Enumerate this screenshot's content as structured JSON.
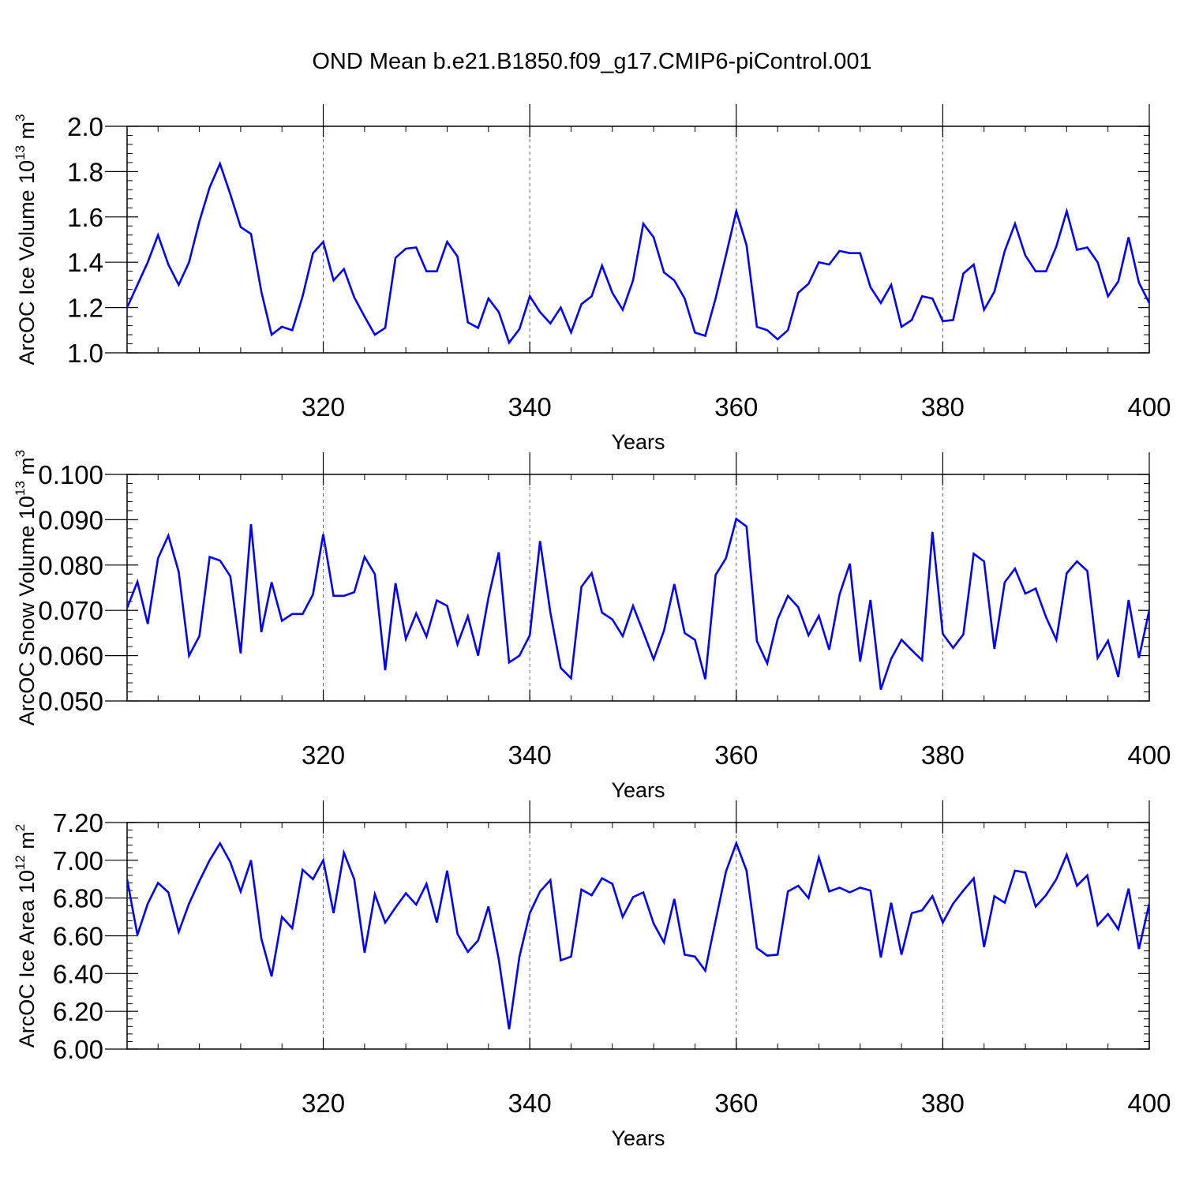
{
  "title": "OND Mean b.e21.B1850.f09_g17.CMIP6-piControl.001",
  "colors": {
    "series": "#0000ff",
    "axis": "#000000",
    "grid": "#666666"
  },
  "chart_data": [
    {
      "type": "line",
      "title": "",
      "xlabel": "Years",
      "ylabel": {
        "base": "ArcOC Ice Volume 10",
        "exp": "13",
        "unit": " m",
        "unit_exp": "3"
      },
      "xlim": [
        301,
        400
      ],
      "ylim": [
        1.0,
        2.0
      ],
      "xticks": [
        320,
        340,
        360,
        380,
        400
      ],
      "xtick_labels": [
        "320",
        "340",
        "360",
        "380",
        "400"
      ],
      "yticks": [
        1.0,
        1.2,
        1.4,
        1.6,
        1.8,
        2.0
      ],
      "ytick_labels": [
        "1.0",
        "1.2",
        "1.4",
        "1.6",
        "1.8",
        "2.0"
      ],
      "grid_x": [
        320,
        340,
        360,
        380
      ],
      "x_start": 301,
      "series": [
        {
          "name": "Ice Volume",
          "values": [
            1.2,
            1.3,
            1.4,
            1.52,
            1.39,
            1.3,
            1.4,
            1.58,
            1.73,
            1.835,
            1.7,
            1.555,
            1.525,
            1.27,
            1.08,
            1.115,
            1.1,
            1.25,
            1.44,
            1.49,
            1.32,
            1.37,
            1.245,
            1.16,
            1.08,
            1.11,
            1.42,
            1.46,
            1.465,
            1.36,
            1.36,
            1.49,
            1.425,
            1.135,
            1.11,
            1.24,
            1.18,
            1.045,
            1.105,
            1.25,
            1.18,
            1.13,
            1.2,
            1.09,
            1.215,
            1.25,
            1.385,
            1.265,
            1.19,
            1.32,
            1.57,
            1.51,
            1.355,
            1.32,
            1.24,
            1.09,
            1.075,
            1.24,
            1.43,
            1.625,
            1.475,
            1.115,
            1.1,
            1.06,
            1.1,
            1.265,
            1.305,
            1.4,
            1.39,
            1.45,
            1.44,
            1.44,
            1.29,
            1.22,
            1.3,
            1.115,
            1.145,
            1.25,
            1.24,
            1.14,
            1.145,
            1.35,
            1.39,
            1.19,
            1.27,
            1.45,
            1.57,
            1.43,
            1.36,
            1.36,
            1.47,
            1.625,
            1.455,
            1.465,
            1.4,
            1.25,
            1.315,
            1.51,
            1.31,
            1.22
          ]
        }
      ]
    },
    {
      "type": "line",
      "title": "",
      "xlabel": "Years",
      "ylabel": {
        "base": "ArcOC Snow Volume 10",
        "exp": "13",
        "unit": " m",
        "unit_exp": "3"
      },
      "xlim": [
        301,
        400
      ],
      "ylim": [
        0.05,
        0.1
      ],
      "xticks": [
        320,
        340,
        360,
        380,
        400
      ],
      "xtick_labels": [
        "320",
        "340",
        "360",
        "380",
        "400"
      ],
      "yticks": [
        0.05,
        0.06,
        0.07,
        0.08,
        0.09,
        0.1
      ],
      "ytick_labels": [
        "0.050",
        "0.060",
        "0.070",
        "0.080",
        "0.090",
        "0.100"
      ],
      "grid_x": [
        320,
        340,
        360,
        380
      ],
      "x_start": 301,
      "series": [
        {
          "name": "Snow Volume",
          "values": [
            0.0705,
            0.0763,
            0.067,
            0.0815,
            0.0865,
            0.0785,
            0.06,
            0.0643,
            0.0818,
            0.081,
            0.0775,
            0.0605,
            0.089,
            0.0652,
            0.0762,
            0.0677,
            0.0692,
            0.0692,
            0.0735,
            0.0868,
            0.0732,
            0.0732,
            0.074,
            0.0818,
            0.078,
            0.0568,
            0.076,
            0.0637,
            0.0693,
            0.0642,
            0.0722,
            0.071,
            0.0625,
            0.0687,
            0.06,
            0.0728,
            0.0828,
            0.0585,
            0.06,
            0.0645,
            0.0853,
            0.0695,
            0.0573,
            0.055,
            0.0752,
            0.0782,
            0.0695,
            0.068,
            0.0643,
            0.071,
            0.0652,
            0.0592,
            0.0655,
            0.0758,
            0.065,
            0.0635,
            0.0548,
            0.0778,
            0.0815,
            0.0902,
            0.0885,
            0.0632,
            0.0583,
            0.068,
            0.0732,
            0.0707,
            0.0645,
            0.0688,
            0.0613,
            0.0735,
            0.0803,
            0.0587,
            0.0723,
            0.0525,
            0.0593,
            0.0635,
            0.0612,
            0.059,
            0.0873,
            0.0648,
            0.0617,
            0.0647,
            0.0825,
            0.0808,
            0.0615,
            0.0762,
            0.0792,
            0.0737,
            0.0748,
            0.0685,
            0.0635,
            0.0782,
            0.0808,
            0.0787,
            0.0595,
            0.0633,
            0.0553,
            0.0723,
            0.0595,
            0.07
          ]
        }
      ]
    },
    {
      "type": "line",
      "title": "",
      "xlabel": "Years",
      "ylabel": {
        "base": "ArcOC Ice Area 10",
        "exp": "12",
        "unit": " m",
        "unit_exp": "2"
      },
      "xlim": [
        301,
        400
      ],
      "ylim": [
        6.0,
        7.2
      ],
      "xticks": [
        320,
        340,
        360,
        380,
        400
      ],
      "xtick_labels": [
        "320",
        "340",
        "360",
        "380",
        "400"
      ],
      "yticks": [
        6.0,
        6.2,
        6.4,
        6.6,
        6.8,
        7.0,
        7.2
      ],
      "ytick_labels": [
        "6.00",
        "6.20",
        "6.40",
        "6.60",
        "6.80",
        "7.00",
        "7.20"
      ],
      "grid_x": [
        320,
        340,
        360,
        380
      ],
      "x_start": 301,
      "series": [
        {
          "name": "Ice Area",
          "values": [
            6.9,
            6.605,
            6.77,
            6.88,
            6.83,
            6.62,
            6.77,
            6.89,
            7.0,
            7.09,
            6.99,
            6.835,
            7.0,
            6.585,
            6.385,
            6.7,
            6.64,
            6.95,
            6.9,
            7.0,
            6.72,
            7.04,
            6.9,
            6.51,
            6.82,
            6.67,
            6.75,
            6.825,
            6.765,
            6.875,
            6.67,
            6.945,
            6.61,
            6.515,
            6.575,
            6.755,
            6.475,
            6.105,
            6.49,
            6.72,
            6.835,
            6.895,
            6.47,
            6.49,
            6.845,
            6.815,
            6.905,
            6.875,
            6.7,
            6.805,
            6.83,
            6.665,
            6.565,
            6.795,
            6.5,
            6.49,
            6.415,
            6.68,
            6.94,
            7.09,
            6.945,
            6.535,
            6.495,
            6.5,
            6.835,
            6.865,
            6.8,
            7.015,
            6.835,
            6.855,
            6.83,
            6.855,
            6.84,
            6.485,
            6.775,
            6.5,
            6.72,
            6.735,
            6.81,
            6.67,
            6.77,
            6.84,
            6.905,
            6.54,
            6.81,
            6.775,
            6.945,
            6.935,
            6.755,
            6.815,
            6.9,
            7.03,
            6.865,
            6.92,
            6.655,
            6.715,
            6.635,
            6.85,
            6.53,
            6.77
          ]
        }
      ]
    }
  ]
}
